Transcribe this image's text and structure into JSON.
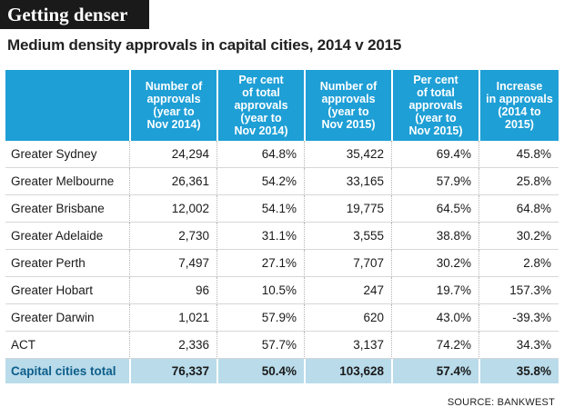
{
  "title": "Getting denser",
  "subtitle": "Medium density approvals in capital cities, 2014 v 2015",
  "source": "SOURCE: BANKWEST",
  "chart_data": {
    "type": "table",
    "columns": [
      "",
      "Number of approvals (year to Nov 2014)",
      "Per cent of total approvals (year to Nov 2014)",
      "Number of approvals (year to Nov 2015)",
      "Per cent of total approvals (year to Nov 2015)",
      "Increase in approvals (2014 to 2015)"
    ],
    "header_lines": [
      [],
      [
        "Number of",
        "approvals",
        "(year to",
        "Nov 2014)"
      ],
      [
        "Per cent",
        "of total",
        "approvals",
        "(year to",
        "Nov 2014)"
      ],
      [
        "Number of",
        "approvals",
        "(year to",
        "Nov 2015)"
      ],
      [
        "Per cent",
        "of total",
        "approvals",
        "(year to",
        "Nov 2015)"
      ],
      [
        "Increase",
        "in approvals",
        "(2014 to",
        "2015)"
      ]
    ],
    "rows": [
      [
        "Greater Sydney",
        "24,294",
        "64.8%",
        "35,422",
        "69.4%",
        "45.8%"
      ],
      [
        "Greater Melbourne",
        "26,361",
        "54.2%",
        "33,165",
        "57.9%",
        "25.8%"
      ],
      [
        "Greater Brisbane",
        "12,002",
        "54.1%",
        "19,775",
        "64.5%",
        "64.8%"
      ],
      [
        "Greater Adelaide",
        "2,730",
        "31.1%",
        "3,555",
        "38.8%",
        "30.2%"
      ],
      [
        "Greater Perth",
        "7,497",
        "27.1%",
        "7,707",
        "30.2%",
        "2.8%"
      ],
      [
        "Greater Hobart",
        "96",
        "10.5%",
        "247",
        "19.7%",
        "157.3%"
      ],
      [
        "Greater Darwin",
        "1,021",
        "57.9%",
        "620",
        "43.0%",
        "-39.3%"
      ],
      [
        "ACT",
        "2,336",
        "57.7%",
        "3,137",
        "74.2%",
        "34.3%"
      ]
    ],
    "total": [
      "Capital cities total",
      "76,337",
      "50.4%",
      "103,628",
      "57.4%",
      "35.8%"
    ]
  },
  "colors": {
    "header_bg": "#1e9fd6",
    "total_bg": "#b9dbea",
    "total_label": "#0e5e8a",
    "title_bg": "#1a1a1a"
  }
}
